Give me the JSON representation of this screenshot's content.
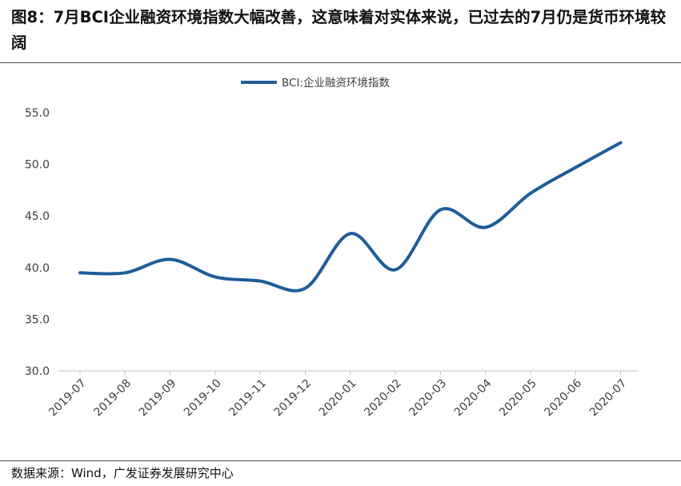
{
  "title": "图8：7月BCI企业融资环境指数大幅改善，这意味着对实体来说，已过去的7月仍是货币环境较阔",
  "source": "数据来源：Wind，广发证券发展研究中心",
  "colors": {
    "series": "#1F5C99",
    "axis": "#BFBFBF",
    "text": "#404040"
  },
  "chart_data": {
    "type": "line",
    "categories": [
      "2019-07",
      "2019-08",
      "2019-09",
      "2019-10",
      "2019-11",
      "2019-12",
      "2020-01",
      "2020-02",
      "2020-03",
      "2020-04",
      "2020-05",
      "2020-06",
      "2020-07"
    ],
    "series": [
      {
        "name": "BCI:企业融资环境指数",
        "values": [
          39.5,
          39.5,
          40.8,
          39.1,
          38.7,
          38.0,
          43.3,
          39.8,
          45.6,
          43.9,
          47.2,
          49.7,
          52.1
        ]
      }
    ],
    "ylim": [
      30,
      55
    ],
    "yticks": [
      "30.0",
      "35.0",
      "40.0",
      "45.0",
      "50.0",
      "55.0"
    ],
    "xlabel": "",
    "ylabel": "",
    "grid": false,
    "legend_position": "top-center"
  }
}
